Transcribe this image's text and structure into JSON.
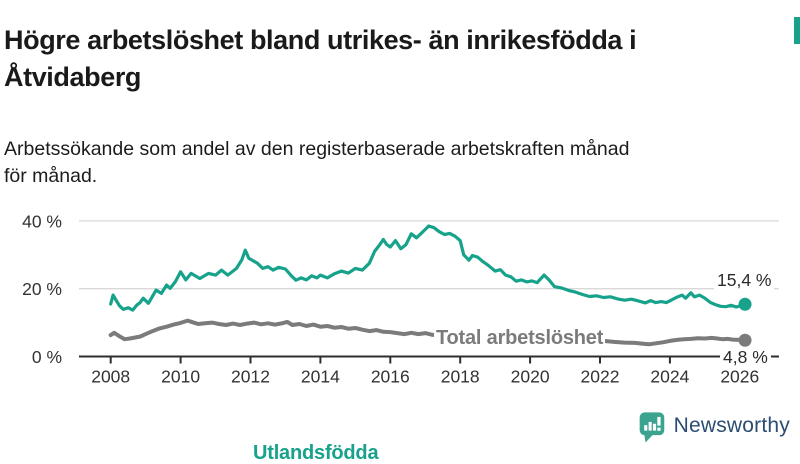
{
  "title_lines": [
    "Högre arbetslöshet bland utrikes- än inrikesfödda i",
    "Åtvidaberg"
  ],
  "subtitle_lines": [
    "Arbetssökande som andel av den registerbaserade arbetskraften månad",
    "för månad."
  ],
  "branding": {
    "name": "Newsworthy",
    "icon": "bar-chart-speech-bubble-icon"
  },
  "colors": {
    "accent_teal": "#17a28b",
    "series_gray": "#7b7b7b",
    "gridline": "#d9d9d9",
    "axis": "#2e2e2e",
    "tick_text": "#333333",
    "brand_navy": "#2a4d71",
    "brand_icon_teal": "#3ba390"
  },
  "chart_data": {
    "type": "line",
    "title": "Högre arbetslöshet bland utrikes- än inrikesfödda i Åtvidaberg",
    "subtitle": "Arbetssökande som andel av den registerbaserade arbetskraften månad för månad.",
    "xlabel": "",
    "ylabel": "",
    "grid": "horizontal",
    "xlim": [
      2007.5,
      2026.6
    ],
    "ylim": [
      0,
      42
    ],
    "x_ticks": [
      2008,
      2010,
      2012,
      2014,
      2016,
      2018,
      2020,
      2022,
      2024,
      2026
    ],
    "y_ticks": [
      {
        "label": "0 %",
        "value": 0
      },
      {
        "label": "20 %",
        "value": 20
      },
      {
        "label": "40 %",
        "value": 40
      }
    ],
    "series": [
      {
        "name": "Utlandsfödda",
        "color": "#17a28b",
        "end_label": "15,4 %",
        "end_value": 15.4,
        "points": [
          [
            2008.0,
            15.5
          ],
          [
            2008.07,
            18.1
          ],
          [
            2008.15,
            16.7
          ],
          [
            2008.25,
            15.0
          ],
          [
            2008.36,
            13.9
          ],
          [
            2008.5,
            14.4
          ],
          [
            2008.63,
            13.7
          ],
          [
            2008.75,
            15.2
          ],
          [
            2008.84,
            15.9
          ],
          [
            2008.93,
            17.2
          ],
          [
            2009.08,
            15.7
          ],
          [
            2009.3,
            19.6
          ],
          [
            2009.45,
            18.6
          ],
          [
            2009.6,
            21.1
          ],
          [
            2009.7,
            20.1
          ],
          [
            2009.85,
            22.1
          ],
          [
            2010.0,
            25.0
          ],
          [
            2010.15,
            22.6
          ],
          [
            2010.3,
            24.5
          ],
          [
            2010.55,
            23.0
          ],
          [
            2010.8,
            24.5
          ],
          [
            2011.0,
            24.0
          ],
          [
            2011.17,
            25.5
          ],
          [
            2011.35,
            24.0
          ],
          [
            2011.6,
            26.0
          ],
          [
            2011.75,
            28.5
          ],
          [
            2011.85,
            31.4
          ],
          [
            2011.95,
            29.0
          ],
          [
            2012.2,
            27.5
          ],
          [
            2012.35,
            26.0
          ],
          [
            2012.5,
            26.5
          ],
          [
            2012.65,
            25.5
          ],
          [
            2012.8,
            26.3
          ],
          [
            2013.0,
            25.8
          ],
          [
            2013.15,
            24.0
          ],
          [
            2013.3,
            22.5
          ],
          [
            2013.45,
            23.2
          ],
          [
            2013.6,
            22.6
          ],
          [
            2013.75,
            23.8
          ],
          [
            2013.9,
            23.2
          ],
          [
            2014.0,
            24.0
          ],
          [
            2014.2,
            23.2
          ],
          [
            2014.4,
            24.4
          ],
          [
            2014.6,
            25.2
          ],
          [
            2014.8,
            24.6
          ],
          [
            2015.0,
            26.0
          ],
          [
            2015.2,
            25.5
          ],
          [
            2015.4,
            27.5
          ],
          [
            2015.55,
            31.0
          ],
          [
            2015.7,
            33.0
          ],
          [
            2015.8,
            34.5
          ],
          [
            2015.9,
            33.0
          ],
          [
            2016.0,
            32.3
          ],
          [
            2016.15,
            34.2
          ],
          [
            2016.3,
            31.8
          ],
          [
            2016.45,
            33.0
          ],
          [
            2016.6,
            36.2
          ],
          [
            2016.75,
            35.0
          ],
          [
            2016.9,
            36.5
          ],
          [
            2017.0,
            37.5
          ],
          [
            2017.1,
            38.5
          ],
          [
            2017.25,
            38.0
          ],
          [
            2017.4,
            36.8
          ],
          [
            2017.55,
            36.0
          ],
          [
            2017.7,
            36.3
          ],
          [
            2017.85,
            35.5
          ],
          [
            2018.0,
            34.2
          ],
          [
            2018.1,
            30.0
          ],
          [
            2018.25,
            28.4
          ],
          [
            2018.35,
            29.8
          ],
          [
            2018.5,
            29.3
          ],
          [
            2018.65,
            28.0
          ],
          [
            2018.8,
            26.9
          ],
          [
            2019.0,
            25.2
          ],
          [
            2019.15,
            25.6
          ],
          [
            2019.3,
            24.0
          ],
          [
            2019.45,
            23.5
          ],
          [
            2019.6,
            22.2
          ],
          [
            2019.75,
            22.6
          ],
          [
            2019.9,
            22.0
          ],
          [
            2020.05,
            22.3
          ],
          [
            2020.2,
            21.8
          ],
          [
            2020.4,
            24.0
          ],
          [
            2020.55,
            22.5
          ],
          [
            2020.7,
            20.6
          ],
          [
            2020.9,
            20.2
          ],
          [
            2021.1,
            19.5
          ],
          [
            2021.3,
            19.0
          ],
          [
            2021.5,
            18.3
          ],
          [
            2021.7,
            17.7
          ],
          [
            2021.9,
            17.9
          ],
          [
            2022.1,
            17.4
          ],
          [
            2022.3,
            17.6
          ],
          [
            2022.5,
            17.0
          ],
          [
            2022.7,
            16.6
          ],
          [
            2022.9,
            16.9
          ],
          [
            2023.1,
            16.4
          ],
          [
            2023.3,
            15.8
          ],
          [
            2023.45,
            16.5
          ],
          [
            2023.6,
            15.9
          ],
          [
            2023.75,
            16.2
          ],
          [
            2023.9,
            15.9
          ],
          [
            2024.05,
            16.7
          ],
          [
            2024.2,
            17.5
          ],
          [
            2024.35,
            18.1
          ],
          [
            2024.45,
            17.2
          ],
          [
            2024.6,
            18.8
          ],
          [
            2024.7,
            17.6
          ],
          [
            2024.85,
            18.1
          ],
          [
            2025.0,
            17.2
          ],
          [
            2025.15,
            16.0
          ],
          [
            2025.3,
            15.3
          ],
          [
            2025.45,
            14.8
          ],
          [
            2025.6,
            14.7
          ],
          [
            2025.75,
            15.1
          ],
          [
            2025.9,
            14.6
          ],
          [
            2026.0,
            14.9
          ],
          [
            2026.15,
            15.4
          ]
        ]
      },
      {
        "name": "Total arbetslöshet",
        "color": "#7b7b7b",
        "end_label": "4,8 %",
        "end_value": 4.8,
        "points": [
          [
            2008.0,
            6.3
          ],
          [
            2008.1,
            7.0
          ],
          [
            2008.25,
            6.0
          ],
          [
            2008.4,
            5.1
          ],
          [
            2008.55,
            5.3
          ],
          [
            2008.7,
            5.6
          ],
          [
            2008.85,
            5.9
          ],
          [
            2009.0,
            6.6
          ],
          [
            2009.2,
            7.5
          ],
          [
            2009.4,
            8.3
          ],
          [
            2009.6,
            8.8
          ],
          [
            2009.8,
            9.4
          ],
          [
            2010.0,
            9.9
          ],
          [
            2010.2,
            10.6
          ],
          [
            2010.35,
            10.1
          ],
          [
            2010.5,
            9.6
          ],
          [
            2010.7,
            9.8
          ],
          [
            2010.9,
            10.0
          ],
          [
            2011.1,
            9.6
          ],
          [
            2011.3,
            9.3
          ],
          [
            2011.5,
            9.7
          ],
          [
            2011.7,
            9.3
          ],
          [
            2011.9,
            9.7
          ],
          [
            2012.1,
            10.0
          ],
          [
            2012.3,
            9.5
          ],
          [
            2012.5,
            9.8
          ],
          [
            2012.7,
            9.4
          ],
          [
            2012.9,
            9.8
          ],
          [
            2013.05,
            10.2
          ],
          [
            2013.2,
            9.3
          ],
          [
            2013.4,
            9.6
          ],
          [
            2013.6,
            9.0
          ],
          [
            2013.8,
            9.4
          ],
          [
            2014.0,
            8.8
          ],
          [
            2014.2,
            9.0
          ],
          [
            2014.4,
            8.5
          ],
          [
            2014.6,
            8.7
          ],
          [
            2014.8,
            8.2
          ],
          [
            2015.0,
            8.4
          ],
          [
            2015.2,
            7.9
          ],
          [
            2015.4,
            7.5
          ],
          [
            2015.6,
            7.8
          ],
          [
            2015.8,
            7.3
          ],
          [
            2016.0,
            7.2
          ],
          [
            2016.2,
            6.9
          ],
          [
            2016.4,
            6.6
          ],
          [
            2016.6,
            7.0
          ],
          [
            2016.8,
            6.6
          ],
          [
            2017.0,
            6.9
          ],
          [
            2017.2,
            6.4
          ],
          [
            2017.4,
            6.2
          ],
          [
            2017.6,
            6.5
          ],
          [
            2017.8,
            6.1
          ],
          [
            2018.0,
            6.3
          ],
          [
            2018.2,
            5.9
          ],
          [
            2018.4,
            6.1
          ],
          [
            2018.6,
            5.7
          ],
          [
            2018.8,
            5.9
          ],
          [
            2019.0,
            5.6
          ],
          [
            2019.2,
            5.8
          ],
          [
            2019.4,
            5.5
          ],
          [
            2019.6,
            5.7
          ],
          [
            2019.8,
            5.8
          ],
          [
            2020.0,
            6.0
          ],
          [
            2020.3,
            6.5
          ],
          [
            2020.6,
            6.1
          ],
          [
            2020.9,
            5.7
          ],
          [
            2021.2,
            5.4
          ],
          [
            2021.5,
            5.1
          ],
          [
            2021.8,
            4.8
          ],
          [
            2022.1,
            4.6
          ],
          [
            2022.4,
            4.3
          ],
          [
            2022.7,
            4.1
          ],
          [
            2023.0,
            4.0
          ],
          [
            2023.2,
            3.8
          ],
          [
            2023.4,
            3.6
          ],
          [
            2023.6,
            3.9
          ],
          [
            2023.8,
            4.2
          ],
          [
            2024.0,
            4.6
          ],
          [
            2024.2,
            4.9
          ],
          [
            2024.4,
            5.1
          ],
          [
            2024.6,
            5.2
          ],
          [
            2024.8,
            5.4
          ],
          [
            2025.0,
            5.3
          ],
          [
            2025.2,
            5.5
          ],
          [
            2025.35,
            5.3
          ],
          [
            2025.5,
            5.1
          ],
          [
            2025.65,
            5.2
          ],
          [
            2025.8,
            5.0
          ],
          [
            2026.0,
            4.9
          ],
          [
            2026.15,
            4.8
          ]
        ]
      }
    ],
    "legend_position": "inline-labels"
  }
}
